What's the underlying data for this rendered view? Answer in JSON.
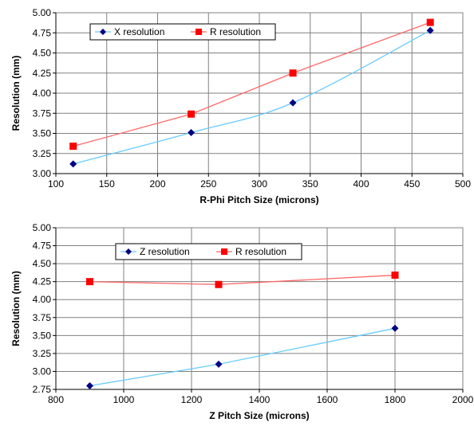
{
  "chart_data": [
    {
      "type": "scatter",
      "xlabel": "R-Phi Pitch Size (microns)",
      "ylabel": "Resolution (mm)",
      "xlim": [
        100,
        500
      ],
      "ylim": [
        3.0,
        5.0
      ],
      "x_ticks": [
        "100",
        "150",
        "200",
        "250",
        "300",
        "350",
        "400",
        "450",
        "500"
      ],
      "y_ticks": [
        "3.00",
        "3.25",
        "3.50",
        "3.75",
        "4.00",
        "4.25",
        "4.50",
        "4.75",
        "5.00"
      ],
      "grid": true,
      "legend_position": "top-left",
      "series": [
        {
          "name": "X resolution",
          "marker": "diamond",
          "marker_color": "#000080",
          "line_color": "#66ccff",
          "smooth": true,
          "points": [
            [
              117,
              3.12
            ],
            [
              233,
              3.51
            ],
            [
              333,
              3.88
            ],
            [
              468,
              4.78
            ]
          ]
        },
        {
          "name": "R resolution",
          "marker": "square",
          "marker_color": "#ff0000",
          "line_color": "#ff6666",
          "smooth": false,
          "points": [
            [
              117,
              3.34
            ],
            [
              233,
              3.74
            ],
            [
              333,
              4.25
            ],
            [
              468,
              4.88
            ]
          ]
        }
      ]
    },
    {
      "type": "scatter",
      "xlabel": "Z Pitch Size (microns)",
      "ylabel": "Resolution (mm)",
      "xlim": [
        800,
        2000
      ],
      "ylim": [
        2.75,
        5.0
      ],
      "x_ticks": [
        "800",
        "1000",
        "1200",
        "1400",
        "1600",
        "1800",
        "2000"
      ],
      "y_ticks": [
        "2.75",
        "3.00",
        "3.25",
        "3.50",
        "3.75",
        "4.00",
        "4.25",
        "4.50",
        "4.75",
        "5.00"
      ],
      "grid": true,
      "legend_position": "top-left",
      "series": [
        {
          "name": "Z resolution",
          "marker": "diamond",
          "marker_color": "#000080",
          "line_color": "#66ccff",
          "smooth": false,
          "points": [
            [
              900,
              2.8
            ],
            [
              1280,
              3.1
            ],
            [
              1800,
              3.6
            ]
          ]
        },
        {
          "name": "R resolution",
          "marker": "square",
          "marker_color": "#ff0000",
          "line_color": "#ff6666",
          "smooth": false,
          "points": [
            [
              900,
              4.25
            ],
            [
              1280,
              4.21
            ],
            [
              1800,
              4.34
            ]
          ]
        }
      ]
    }
  ]
}
